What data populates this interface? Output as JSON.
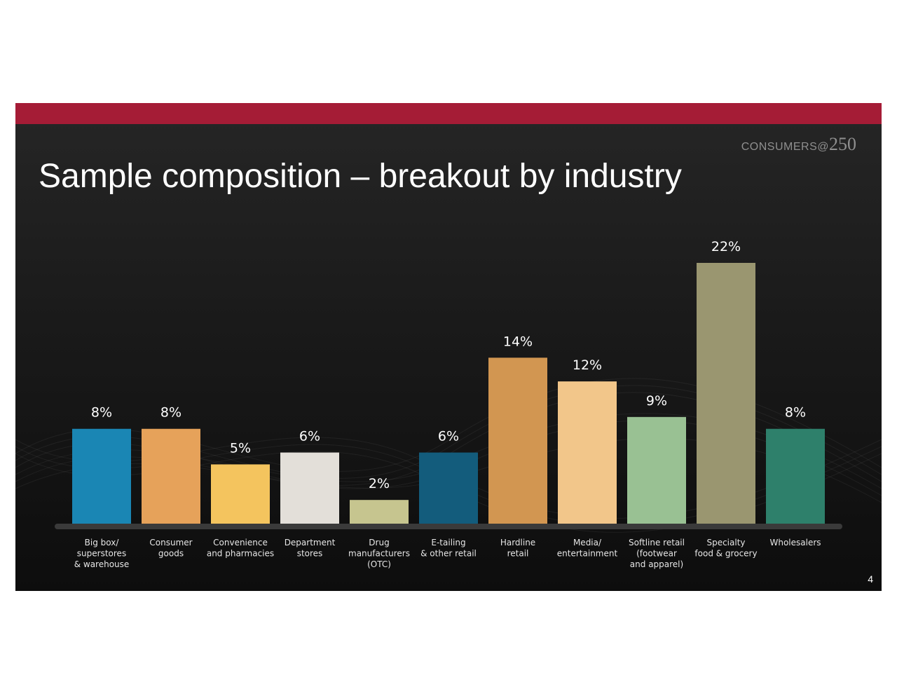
{
  "slide": {
    "brand_text": "CONSUMERS@",
    "brand_number": "250",
    "title": "Sample composition – breakout by industry",
    "page_number": "4",
    "accent_color": "#a51c36"
  },
  "chart_data": {
    "type": "bar",
    "title": "",
    "xlabel": "",
    "ylabel": "",
    "ylim": [
      0,
      22
    ],
    "grid": false,
    "categories": [
      [
        "Big box/",
        "superstores",
        "& warehouse"
      ],
      [
        "Consumer",
        "goods"
      ],
      [
        "Convenience",
        "and pharmacies"
      ],
      [
        "Department",
        "stores"
      ],
      [
        "Drug",
        "manufacturers",
        "(OTC)"
      ],
      [
        "E-tailing",
        "& other retail"
      ],
      [
        "Hardline",
        "retail"
      ],
      [
        "Media/",
        "entertainment"
      ],
      [
        "Softline retail",
        "(footwear",
        "and apparel)"
      ],
      [
        "Specialty",
        "food & grocery"
      ],
      [
        "Wholesalers"
      ]
    ],
    "values": [
      8,
      8,
      5,
      6,
      2,
      6,
      14,
      12,
      9,
      22,
      8
    ],
    "value_labels": [
      "8%",
      "8%",
      "5%",
      "6%",
      "2%",
      "6%",
      "14%",
      "12%",
      "9%",
      "22%",
      "8%"
    ],
    "colors": [
      "#1a86b4",
      "#e6a25a",
      "#f4c45e",
      "#e3dfd9",
      "#c6c58f",
      "#135c7c",
      "#d29651",
      "#f2c68a",
      "#99c193",
      "#9a9670",
      "#2e806b"
    ]
  }
}
